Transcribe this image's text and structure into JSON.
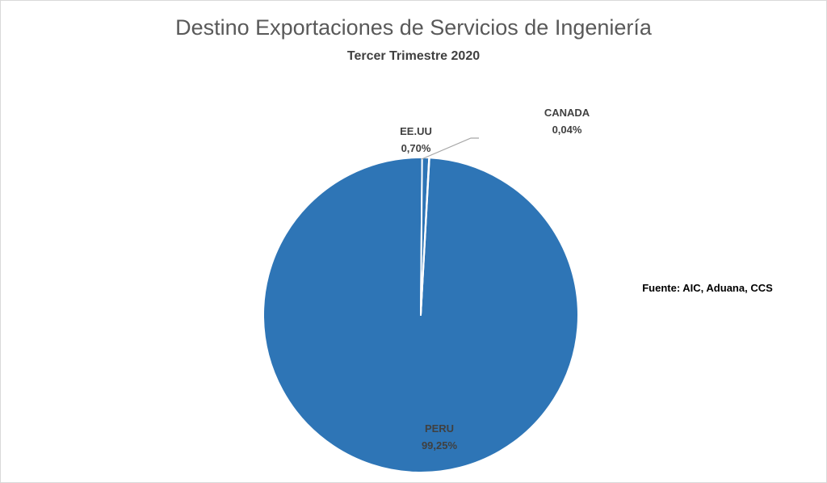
{
  "chart_data": {
    "type": "pie",
    "title": "Destino Exportaciones de Servicios de Ingeniería",
    "subtitle": "Tercer Trimestre 2020",
    "categories": [
      "PERU",
      "EE.UU",
      "CANADA"
    ],
    "values": [
      99.25,
      0.7,
      0.04
    ],
    "value_labels": [
      "99,25%",
      "0,70%",
      "0,04%"
    ],
    "colors": [
      "#2E75B6",
      "#2E75B6",
      "#2E75B6"
    ],
    "slice_border_color": "#ffffff",
    "leader_line_color": "#a6a6a6",
    "annotation": "Fuente: AIC, Aduana, CCS"
  }
}
